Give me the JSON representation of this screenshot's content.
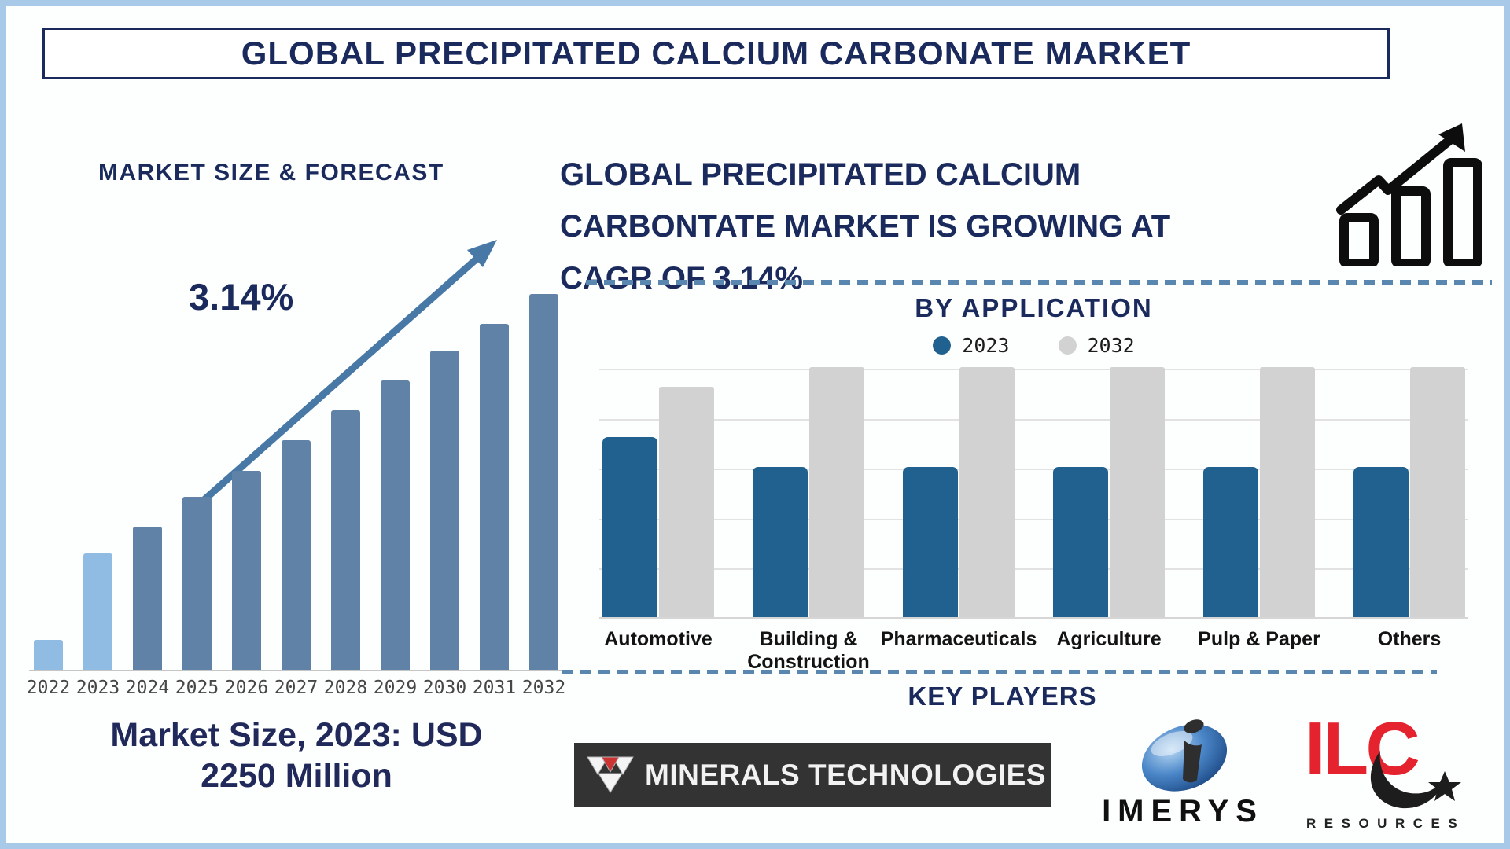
{
  "page": {
    "title": "GLOBAL PRECIPITATED CALCIUM CARBONATE MARKET"
  },
  "left_panel": {
    "heading": "MARKET SIZE & FORECAST",
    "cagr_label": "3.14%",
    "footer_line1": "Market Size, 2023: USD",
    "footer_line2": "2250 Million"
  },
  "right_panel": {
    "heading_line1": "GLOBAL PRECIPITATED CALCIUM",
    "heading_line2": "CARBONTATE MARKET IS GROWING AT",
    "heading_line3": "CAGR OF 3.14%",
    "by_application_title": "BY APPLICATION",
    "key_players_title": "KEY PLAYERS"
  },
  "key_players": {
    "minerals_technologies": "MINERALS TECHNOLOGIES",
    "imerys": "IMERYS",
    "ilc": "ILC",
    "ilc_sub": "RESOURCES"
  },
  "icons": {
    "growth_icon": "growth-bar-chart-with-arrow",
    "trend_arrow": "upward-trend-arrow",
    "mt_mark": "minerals-technologies-triangle-mark",
    "imerys_mark": "imerys-blue-ellipse-mark",
    "ilc_star": "ilc-star-swoosh-mark"
  },
  "colors": {
    "navy_text": "#1b2a5c",
    "forecast_bar_light": "#90bce4",
    "forecast_bar_steel": "#5f82a6",
    "trend_arrow": "#4878a6",
    "app_bar_2023": "#20618f",
    "app_bar_2032": "#d2d2d2",
    "dashed_line": "#5a87b0",
    "ilc_red": "#e4232e",
    "frame_border": "#a9c9e9"
  },
  "chart_data": [
    {
      "type": "bar",
      "title": "Market Size & Forecast",
      "note": "No value axis shown; values are relative bar heights in percent of the 2032 bar",
      "categories": [
        "2022",
        "2023",
        "2024",
        "2025",
        "2026",
        "2027",
        "2028",
        "2029",
        "2030",
        "2031",
        "2032"
      ],
      "values": [
        8,
        31,
        38,
        46,
        53,
        61,
        69,
        77,
        85,
        92,
        100
      ],
      "bar_colors": [
        "#90bce4",
        "#90bce4",
        "#5f82a6",
        "#5f82a6",
        "#5f82a6",
        "#5f82a6",
        "#5f82a6",
        "#5f82a6",
        "#5f82a6",
        "#5f82a6",
        "#5f82a6"
      ],
      "annotation": "3.14% CAGR arrow",
      "known_value": "2023 = USD 2250 Million",
      "grid": false,
      "ylim": [
        0,
        100
      ]
    },
    {
      "type": "bar",
      "title": "By Application",
      "note": "Grouped bars, no value axis labels shown; values estimated from gridlines (top gridline = 100)",
      "categories": [
        "Automotive",
        "Building & Construction",
        "Pharmaceuticals",
        "Agriculture",
        "Pulp & Paper",
        "Others"
      ],
      "series": [
        {
          "name": "2023",
          "color": "#20618f",
          "values": [
            72,
            60,
            60,
            60,
            60,
            60
          ]
        },
        {
          "name": "2032",
          "color": "#d2d2d2",
          "values": [
            92,
            100,
            100,
            100,
            100,
            100
          ]
        }
      ],
      "grid": true,
      "gridline_values": [
        20,
        40,
        60,
        80,
        100
      ],
      "legend_position": "top-center",
      "ylim": [
        0,
        100
      ]
    }
  ]
}
